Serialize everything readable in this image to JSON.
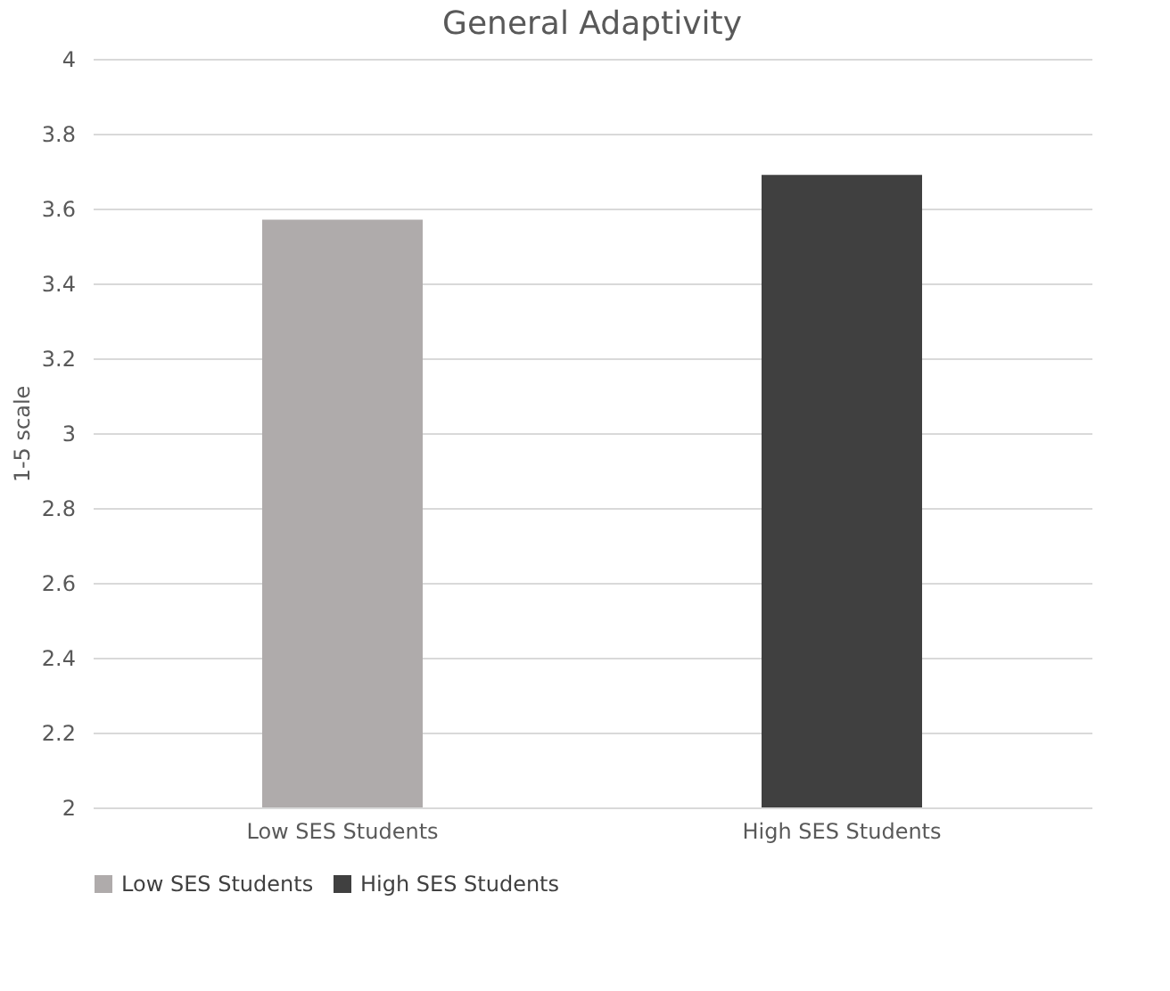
{
  "chart_data": {
    "type": "bar",
    "title": "General Adaptivity",
    "ylabel": "1-5 scale",
    "categories": [
      "Low SES Students",
      "High SES Students"
    ],
    "series": [
      {
        "name": "Low SES Students",
        "color": "#afabab",
        "values": [
          3.57,
          null
        ]
      },
      {
        "name": "High SES Students",
        "color": "#404040",
        "values": [
          null,
          3.69
        ]
      }
    ],
    "ylim": [
      2,
      4
    ],
    "yticks": [
      2,
      2.2,
      2.4,
      2.6,
      2.8,
      3,
      3.2,
      3.4,
      3.6,
      3.8,
      4
    ],
    "grid": "y",
    "legend": "bottom"
  }
}
